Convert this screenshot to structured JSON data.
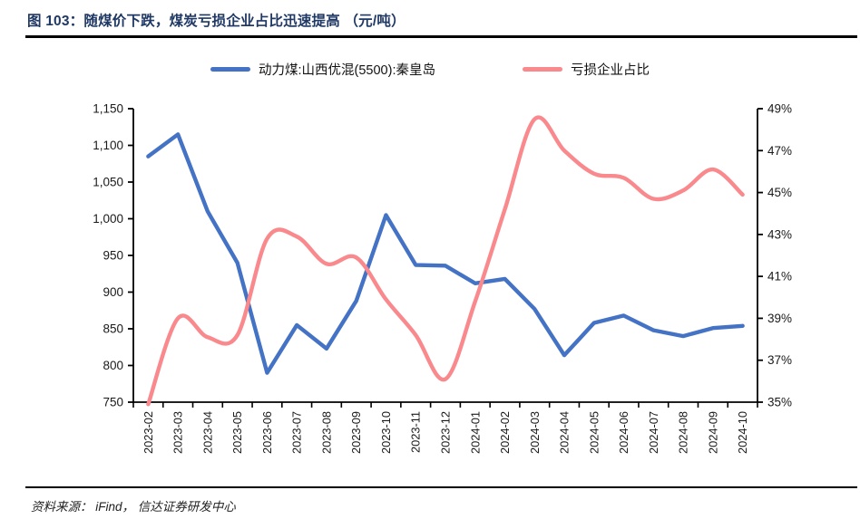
{
  "header": {
    "title": "图 103：随煤价下跌，煤炭亏损企业占比迅速提高 （元/吨）"
  },
  "legend": [
    {
      "label": "动力煤:山西优混(5500):秦皇岛",
      "color": "#4472C4",
      "icon": "blue-line-marker"
    },
    {
      "label": "亏损企业占比",
      "color": "#F9898D",
      "icon": "pink-line-marker"
    }
  ],
  "footer": {
    "source": "资料来源：  iFind，  信达证券研发中心"
  },
  "colors": {
    "title": "#1f3864",
    "axis": "#000000",
    "tick_text": "#1a1a1a",
    "series_price": "#4472C4",
    "series_loss_ratio": "#F9898D"
  },
  "chart_data": {
    "type": "line",
    "title": "随煤价下跌，煤炭亏损企业占比迅速提高",
    "unit_note": "元/吨",
    "grid": false,
    "legend_position": "top",
    "categories": [
      "2023-02",
      "2023-03",
      "2023-04",
      "2023-05",
      "2023-06",
      "2023-07",
      "2023-08",
      "2023-09",
      "2023-10",
      "2023-11",
      "2023-12",
      "2024-01",
      "2024-02",
      "2024-03",
      "2024-04",
      "2024-05",
      "2024-06",
      "2024-07",
      "2024-08",
      "2024-09",
      "2024-10"
    ],
    "series": [
      {
        "name": "动力煤:山西优混(5500):秦皇岛",
        "axis": "left",
        "color": "#4472C4",
        "smooth": false,
        "values": [
          1085,
          1115,
          1010,
          940,
          790,
          855,
          823,
          888,
          1005,
          937,
          936,
          912,
          918,
          877,
          814,
          858,
          868,
          848,
          840,
          851,
          854
        ]
      },
      {
        "name": "亏损企业占比",
        "axis": "right",
        "color": "#F9898D",
        "smooth": true,
        "values": [
          34.9,
          39.0,
          38.1,
          38.2,
          42.8,
          42.9,
          41.6,
          41.9,
          39.9,
          38.2,
          36.1,
          39.8,
          44.2,
          48.5,
          47.0,
          45.9,
          45.7,
          44.7,
          45.1,
          46.1,
          44.9
        ]
      }
    ],
    "left_axis": {
      "min": 750,
      "max": 1150,
      "step": 50,
      "tick_labels": [
        "750",
        "800",
        "850",
        "900",
        "950",
        "1,000",
        "1,050",
        "1,100",
        "1,150"
      ]
    },
    "right_axis": {
      "min": 35,
      "max": 49,
      "step": 2,
      "tick_labels": [
        "35%",
        "37%",
        "39%",
        "41%",
        "43%",
        "45%",
        "47%",
        "49%"
      ]
    }
  }
}
